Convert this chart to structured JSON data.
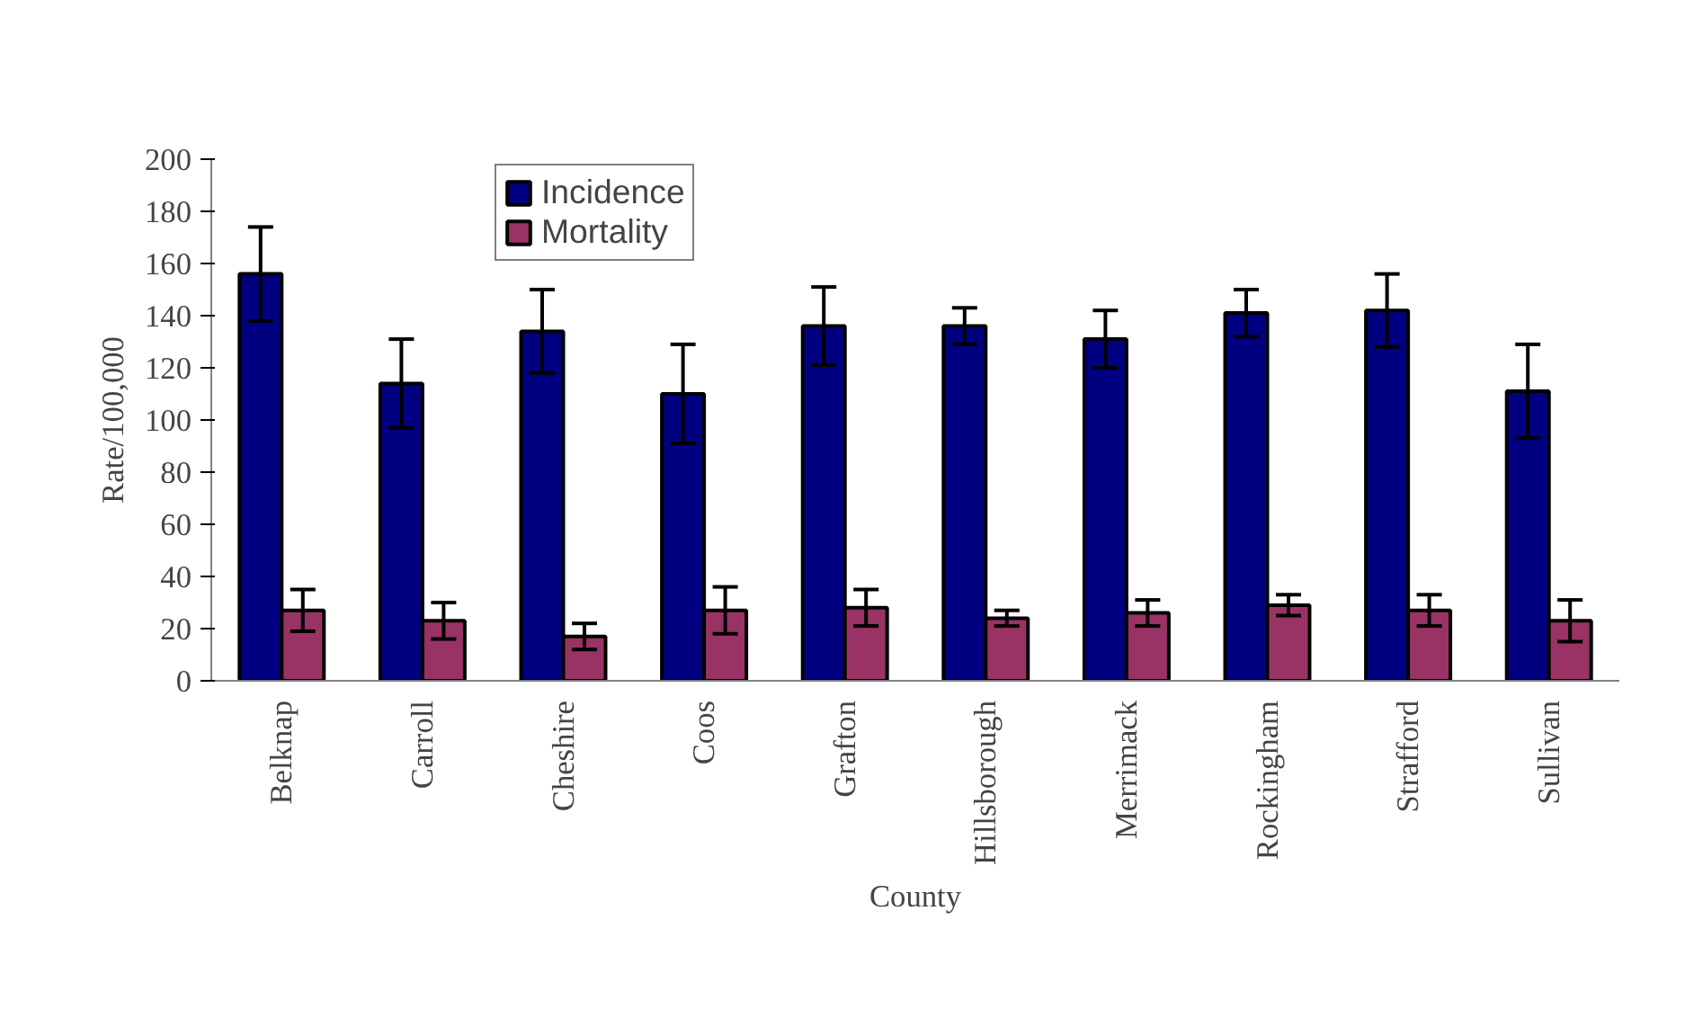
{
  "chart_data": {
    "type": "bar",
    "xlabel": "County",
    "ylabel": "Rate/100,000",
    "categories": [
      "Belknap",
      "Carroll",
      "Cheshire",
      "Coos",
      "Grafton",
      "Hillsborough",
      "Merrimack",
      "Rockingham",
      "Strafford",
      "Sullivan"
    ],
    "series": [
      {
        "name": "Incidence",
        "color": "#000080",
        "values": [
          156,
          114,
          134,
          110,
          136,
          136,
          131,
          141,
          142,
          111
        ],
        "errors": [
          18,
          17,
          16,
          19,
          15,
          7,
          11,
          9,
          14,
          18
        ]
      },
      {
        "name": "Mortality",
        "color": "#993366",
        "values": [
          27,
          23,
          17,
          27,
          28,
          24,
          26,
          29,
          27,
          23
        ],
        "errors": [
          8,
          7,
          5,
          9,
          7,
          3,
          5,
          4,
          6,
          8
        ]
      }
    ],
    "ylim": [
      0,
      200
    ],
    "yticks": [
      0,
      20,
      40,
      60,
      80,
      100,
      120,
      140,
      160,
      180,
      200
    ],
    "grid": false,
    "legend": "top"
  }
}
